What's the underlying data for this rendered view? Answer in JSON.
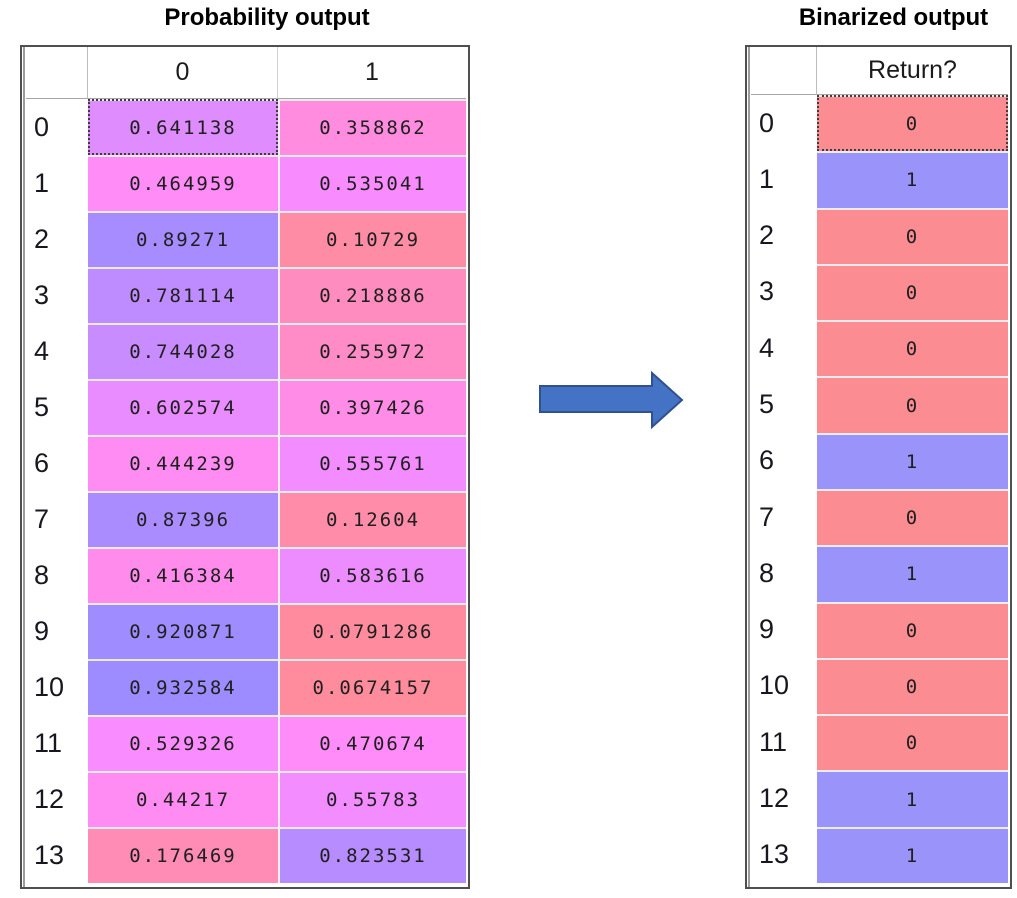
{
  "left_table": {
    "title": "Probability output",
    "columns": [
      "0",
      "1"
    ],
    "rows": [
      {
        "index": "0",
        "cells": [
          {
            "text": "0.641138",
            "bg": "#DF8CFF",
            "selected": true
          },
          {
            "text": "0.358862",
            "bg": "#FF8CDF",
            "selected": false
          }
        ]
      },
      {
        "index": "1",
        "cells": [
          {
            "text": "0.464959",
            "bg": "#FF8CF7",
            "selected": false
          },
          {
            "text": "0.535041",
            "bg": "#F88CFF",
            "selected": false
          }
        ]
      },
      {
        "index": "2",
        "cells": [
          {
            "text": "0.89271",
            "bg": "#A68CFF",
            "selected": false
          },
          {
            "text": "0.10729",
            "bg": "#FF8CA5",
            "selected": false
          }
        ]
      },
      {
        "index": "3",
        "cells": [
          {
            "text": "0.781114",
            "bg": "#BF8CFF",
            "selected": false
          },
          {
            "text": "0.218886",
            "bg": "#FF8CBE",
            "selected": false
          }
        ]
      },
      {
        "index": "4",
        "cells": [
          {
            "text": "0.744028",
            "bg": "#C88CFF",
            "selected": false
          },
          {
            "text": "0.255972",
            "bg": "#FF8CC7",
            "selected": false
          }
        ]
      },
      {
        "index": "5",
        "cells": [
          {
            "text": "0.602574",
            "bg": "#E88CFF",
            "selected": false
          },
          {
            "text": "0.397426",
            "bg": "#FF8CE7",
            "selected": false
          }
        ]
      },
      {
        "index": "6",
        "cells": [
          {
            "text": "0.444239",
            "bg": "#FF8CF2",
            "selected": false
          },
          {
            "text": "0.555761",
            "bg": "#F38CFF",
            "selected": false
          }
        ]
      },
      {
        "index": "7",
        "cells": [
          {
            "text": "0.87396",
            "bg": "#AA8CFF",
            "selected": false
          },
          {
            "text": "0.12604",
            "bg": "#FF8CA9",
            "selected": false
          }
        ]
      },
      {
        "index": "8",
        "cells": [
          {
            "text": "0.416384",
            "bg": "#FF8CEC",
            "selected": false
          },
          {
            "text": "0.583616",
            "bg": "#ED8CFF",
            "selected": false
          }
        ]
      },
      {
        "index": "9",
        "cells": [
          {
            "text": "0.920871",
            "bg": "#9F8CFF",
            "selected": false
          },
          {
            "text": "0.0791286",
            "bg": "#FF8C9E",
            "selected": false
          }
        ]
      },
      {
        "index": "10",
        "cells": [
          {
            "text": "0.932584",
            "bg": "#9D8CFF",
            "selected": false
          },
          {
            "text": "0.0674157",
            "bg": "#FF8C9C",
            "selected": false
          }
        ]
      },
      {
        "index": "11",
        "cells": [
          {
            "text": "0.529326",
            "bg": "#F98CFF",
            "selected": false
          },
          {
            "text": "0.470674",
            "bg": "#FF8CF8",
            "selected": false
          }
        ]
      },
      {
        "index": "12",
        "cells": [
          {
            "text": "0.44217",
            "bg": "#FF8CF2",
            "selected": false
          },
          {
            "text": "0.55783",
            "bg": "#F28CFF",
            "selected": false
          }
        ]
      },
      {
        "index": "13",
        "cells": [
          {
            "text": "0.176469",
            "bg": "#FF8CB5",
            "selected": false
          },
          {
            "text": "0.823531",
            "bg": "#B68CFF",
            "selected": false
          }
        ]
      }
    ]
  },
  "right_table": {
    "title": "Binarized output",
    "columns": [
      "Return?"
    ],
    "rows": [
      {
        "index": "0",
        "cells": [
          {
            "text": "0",
            "bg": "#FB8C92",
            "selected": true
          }
        ]
      },
      {
        "index": "1",
        "cells": [
          {
            "text": "1",
            "bg": "#9A93F9",
            "selected": false
          }
        ]
      },
      {
        "index": "2",
        "cells": [
          {
            "text": "0",
            "bg": "#FB8C92",
            "selected": false
          }
        ]
      },
      {
        "index": "3",
        "cells": [
          {
            "text": "0",
            "bg": "#FB8C92",
            "selected": false
          }
        ]
      },
      {
        "index": "4",
        "cells": [
          {
            "text": "0",
            "bg": "#FB8C92",
            "selected": false
          }
        ]
      },
      {
        "index": "5",
        "cells": [
          {
            "text": "0",
            "bg": "#FB8C92",
            "selected": false
          }
        ]
      },
      {
        "index": "6",
        "cells": [
          {
            "text": "1",
            "bg": "#9A93F9",
            "selected": false
          }
        ]
      },
      {
        "index": "7",
        "cells": [
          {
            "text": "0",
            "bg": "#FB8C92",
            "selected": false
          }
        ]
      },
      {
        "index": "8",
        "cells": [
          {
            "text": "1",
            "bg": "#9A93F9",
            "selected": false
          }
        ]
      },
      {
        "index": "9",
        "cells": [
          {
            "text": "0",
            "bg": "#FB8C92",
            "selected": false
          }
        ]
      },
      {
        "index": "10",
        "cells": [
          {
            "text": "0",
            "bg": "#FB8C92",
            "selected": false
          }
        ]
      },
      {
        "index": "11",
        "cells": [
          {
            "text": "0",
            "bg": "#FB8C92",
            "selected": false
          }
        ]
      },
      {
        "index": "12",
        "cells": [
          {
            "text": "1",
            "bg": "#9A93F9",
            "selected": false
          }
        ]
      },
      {
        "index": "13",
        "cells": [
          {
            "text": "1",
            "bg": "#9A93F9",
            "selected": false
          }
        ]
      }
    ]
  },
  "arrow": {
    "fill": "#4472C4",
    "stroke": "#2F528F"
  },
  "colors": {
    "binary_zero": "#FB8C92",
    "binary_one": "#9A93F9",
    "gridline": "#a6a6a6",
    "table_border": "#4f4f4f"
  },
  "chart_data": [
    {
      "type": "table",
      "title": "Probability output",
      "columns": [
        "0",
        "1"
      ],
      "row_labels": [
        "0",
        "1",
        "2",
        "3",
        "4",
        "5",
        "6",
        "7",
        "8",
        "9",
        "10",
        "11",
        "12",
        "13"
      ],
      "values": [
        [
          0.641138,
          0.358862
        ],
        [
          0.464959,
          0.535041
        ],
        [
          0.89271,
          0.10729
        ],
        [
          0.781114,
          0.218886
        ],
        [
          0.744028,
          0.255972
        ],
        [
          0.602574,
          0.397426
        ],
        [
          0.444239,
          0.555761
        ],
        [
          0.87396,
          0.12604
        ],
        [
          0.416384,
          0.583616
        ],
        [
          0.920871,
          0.0791286
        ],
        [
          0.932584,
          0.0674157
        ],
        [
          0.529326,
          0.470674
        ],
        [
          0.44217,
          0.55783
        ],
        [
          0.176469,
          0.823531
        ]
      ],
      "color_encoding": "cell background maps value 0→1 along red → magenta → blue gradient"
    },
    {
      "type": "table",
      "title": "Binarized output",
      "columns": [
        "Return?"
      ],
      "row_labels": [
        "0",
        "1",
        "2",
        "3",
        "4",
        "5",
        "6",
        "7",
        "8",
        "9",
        "10",
        "11",
        "12",
        "13"
      ],
      "values": [
        [
          0
        ],
        [
          1
        ],
        [
          0
        ],
        [
          0
        ],
        [
          0
        ],
        [
          0
        ],
        [
          1
        ],
        [
          0
        ],
        [
          1
        ],
        [
          0
        ],
        [
          0
        ],
        [
          0
        ],
        [
          1
        ],
        [
          1
        ]
      ],
      "color_encoding": "0 = red cell, 1 = blue cell"
    }
  ]
}
